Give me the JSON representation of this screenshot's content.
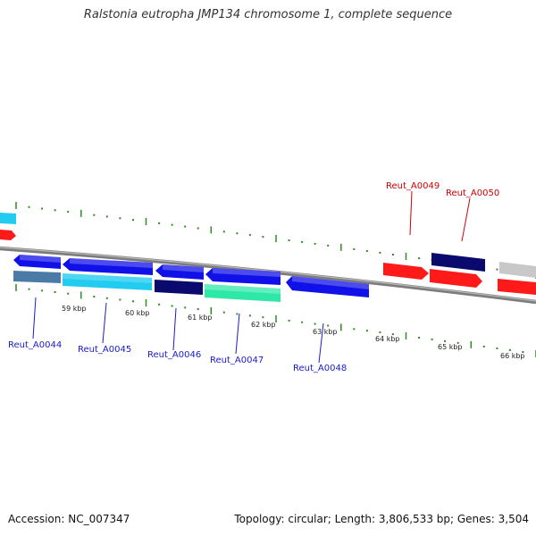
{
  "title": "Ralstonia eutropha JMP134 chromosome 1, complete sequence",
  "footer": {
    "accession": "Accession: NC_007347",
    "summary": "Topology: circular; Length: 3,806,533 bp; Genes: 3,504"
  },
  "kbp_labels": [
    "59 kbp",
    "60 kbp",
    "61 kbp",
    "62 kbp",
    "63 kbp",
    "64 kbp",
    "65 kbp",
    "66 kbp"
  ],
  "gene_labels": {
    "forward": [
      "Reut_A0049",
      "Reut_A0050"
    ],
    "reverse": [
      "Reut_A0044",
      "Reut_A0045",
      "Reut_A0046",
      "Reut_A0047",
      "Reut_A0048"
    ]
  },
  "colors": {
    "forward_label": "#cc0000",
    "reverse_label": "#1a1acc",
    "tick": "#2e8b22",
    "backbone": "#888888",
    "red": "#ff1a1a",
    "blue": "#1010e8",
    "navy": "#0a0a6e",
    "cyan": "#22ccf0",
    "steel": "#4a7aa6",
    "mint": "#2ee8a8",
    "gray": "#c8c8c8"
  }
}
